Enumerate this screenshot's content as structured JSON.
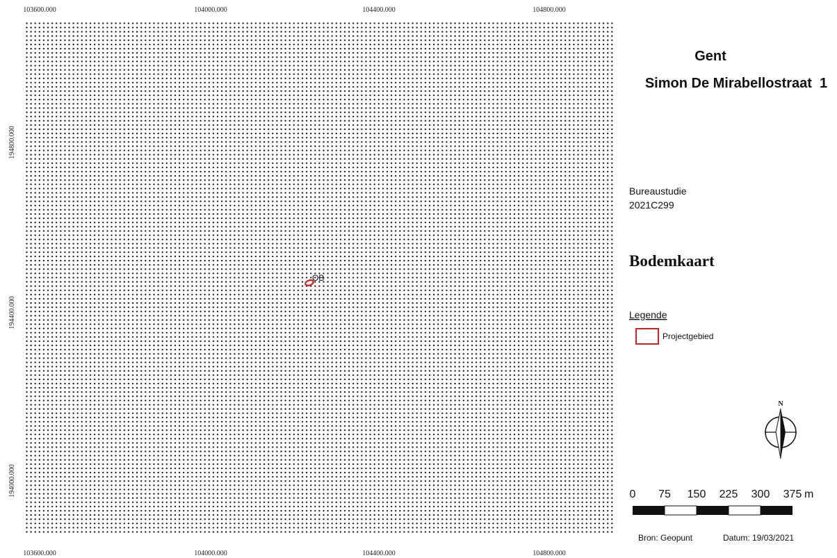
{
  "map": {
    "coords_top": [
      "103600.000",
      "104000.000",
      "104400.000",
      "104800.000"
    ],
    "coords_bottom": [
      "103600.000",
      "104000.000",
      "104400.000",
      "104800.000"
    ],
    "coords_left": [
      "194800.000",
      "194400.000",
      "194000.000"
    ],
    "feature_label": "OB"
  },
  "panel": {
    "city": "Gent",
    "address": "Simon De Mirabellostraat  1",
    "study": "Bureaustudie",
    "code": "2021C299",
    "map_title": "Bodemkaart",
    "legend_title": "Legende",
    "legend_item": "Projectgebied",
    "north": "N",
    "scale_labels": [
      "0",
      "75",
      "150",
      "225",
      "300",
      "375"
    ],
    "scale_unit": "m",
    "source": "Bron: Geopunt",
    "date": "Datum: 19/03/2021"
  }
}
